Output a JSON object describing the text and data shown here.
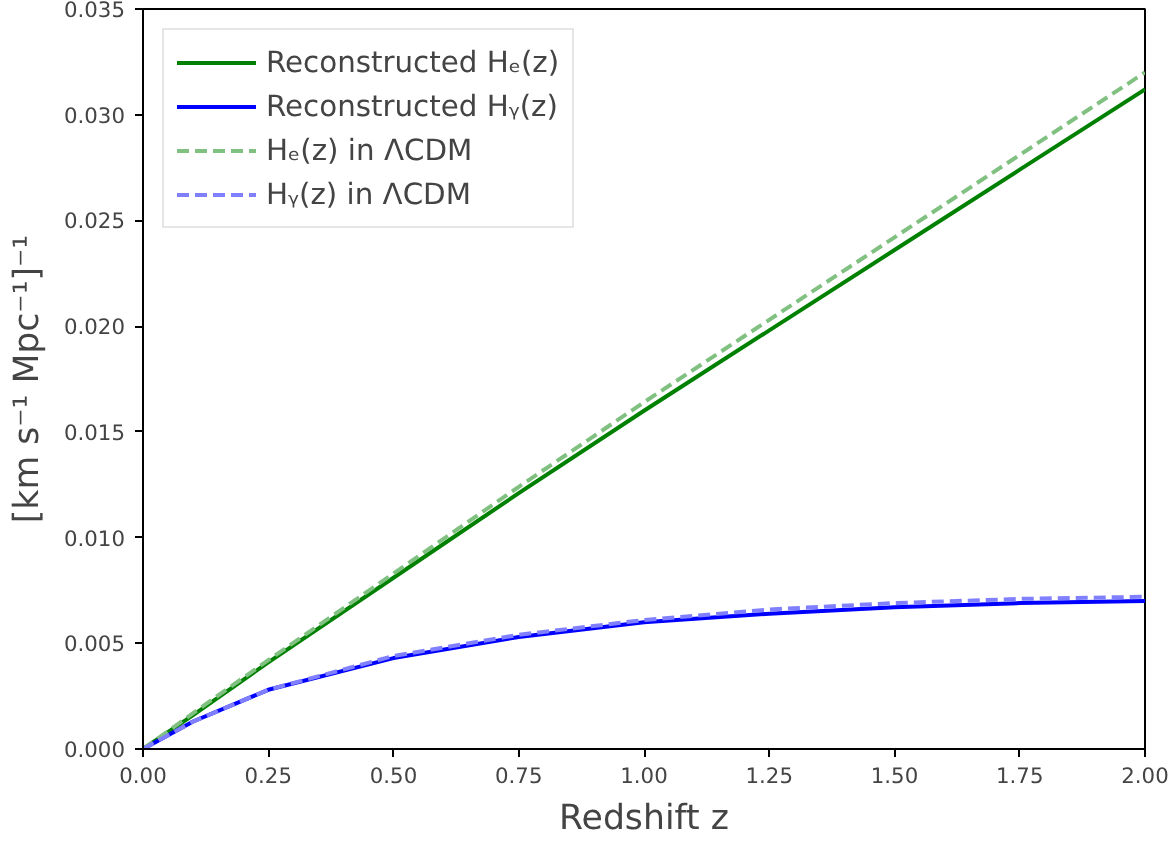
{
  "chart_data": {
    "type": "line",
    "xlabel": "Redshift z",
    "ylabel": "[km s⁻¹ Mpc⁻¹]⁻¹",
    "x": [
      0,
      0.1,
      0.25,
      0.5,
      0.75,
      1.0,
      1.25,
      1.5,
      1.75,
      2.0
    ],
    "series": [
      {
        "name": "Reconstructed Hₑ(z)",
        "color": "#008000",
        "line_style": "solid",
        "values": [
          0,
          0.0016,
          0.0041,
          0.0081,
          0.0121,
          0.016,
          0.0198,
          0.0236,
          0.0274,
          0.0312
        ]
      },
      {
        "name": "Reconstructed Hᵧ(z)",
        "color": "#0000ff",
        "line_style": "solid",
        "values": [
          0,
          0.0013,
          0.0028,
          0.0043,
          0.0053,
          0.006,
          0.0064,
          0.0067,
          0.0069,
          0.007
        ]
      },
      {
        "name": "Hₑ(z) in ΛCDM",
        "color": "#80c080",
        "line_style": "dashed",
        "values": [
          0,
          0.0017,
          0.0042,
          0.0083,
          0.0124,
          0.0164,
          0.0203,
          0.0242,
          0.0281,
          0.032
        ]
      },
      {
        "name": "Hᵧ(z) in ΛCDM",
        "color": "#8080ff",
        "line_style": "dashed",
        "values": [
          0,
          0.0013,
          0.0028,
          0.0044,
          0.0054,
          0.0061,
          0.0066,
          0.0069,
          0.0071,
          0.0072
        ]
      }
    ],
    "xlim": [
      0,
      2.0
    ],
    "xticks": [
      {
        "value": 0,
        "label": "0.00"
      },
      {
        "value": 0.25,
        "label": "0.25"
      },
      {
        "value": 0.5,
        "label": "0.50"
      },
      {
        "value": 0.75,
        "label": "0.75"
      },
      {
        "value": 1.0,
        "label": "1.00"
      },
      {
        "value": 1.25,
        "label": "1.25"
      },
      {
        "value": 1.5,
        "label": "1.50"
      },
      {
        "value": 1.75,
        "label": "1.75"
      },
      {
        "value": 2.0,
        "label": "2.00"
      }
    ],
    "ylim": [
      0,
      0.035
    ],
    "yticks": [
      {
        "value": 0,
        "label": "0.000"
      },
      {
        "value": 0.005,
        "label": "0.005"
      },
      {
        "value": 0.01,
        "label": "0.010"
      },
      {
        "value": 0.015,
        "label": "0.015"
      },
      {
        "value": 0.02,
        "label": "0.020"
      },
      {
        "value": 0.025,
        "label": "0.025"
      },
      {
        "value": 0.03,
        "label": "0.030"
      },
      {
        "value": 0.035,
        "label": "0.035"
      }
    ],
    "grid": false,
    "legend": "top left",
    "marker": "none"
  }
}
